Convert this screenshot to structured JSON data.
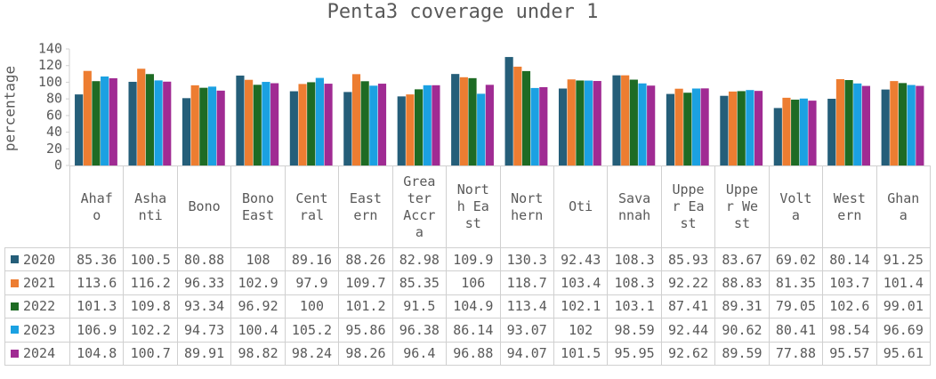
{
  "chart_data": {
    "type": "bar",
    "title": "Penta3 coverage under 1",
    "y_label": "percentage",
    "categories": [
      "Ahafo",
      "Ashanti",
      "Bono",
      "Bono East",
      "Central",
      "Eastern",
      "Greater Accra",
      "North East",
      "Northern",
      "Oti",
      "Savannah",
      "Upper East",
      "Upper West",
      "Volta",
      "Western",
      "Ghana"
    ],
    "series": [
      {
        "name": "2020",
        "color": "#255e79",
        "values": [
          85.36,
          100.5,
          80.88,
          108,
          89.16,
          88.26,
          82.98,
          109.9,
          130.3,
          92.43,
          108.3,
          85.93,
          83.67,
          69.02,
          80.14,
          91.25
        ]
      },
      {
        "name": "2021",
        "color": "#ed7d31",
        "values": [
          113.6,
          116.2,
          96.33,
          102.9,
          97.9,
          109.7,
          85.35,
          106,
          118.7,
          103.4,
          108.3,
          92.22,
          88.83,
          81.35,
          103.7,
          101.4
        ]
      },
      {
        "name": "2022",
        "color": "#1e6b24",
        "values": [
          101.3,
          109.8,
          93.34,
          96.92,
          100,
          101.2,
          91.5,
          104.9,
          113.4,
          102.1,
          103.1,
          87.41,
          89.31,
          79.05,
          102.6,
          99.01
        ]
      },
      {
        "name": "2023",
        "color": "#1ba1e2",
        "values": [
          106.9,
          102.2,
          94.73,
          100.4,
          105.2,
          95.86,
          96.38,
          86.14,
          93.07,
          102,
          98.59,
          92.44,
          90.62,
          80.41,
          98.54,
          96.69
        ]
      },
      {
        "name": "2024",
        "color": "#a02b93",
        "values": [
          104.8,
          100.7,
          89.91,
          98.82,
          98.24,
          98.26,
          96.4,
          96.88,
          94.07,
          101.5,
          95.95,
          92.62,
          89.59,
          77.88,
          95.57,
          95.61
        ]
      }
    ],
    "ylim": [
      0,
      140
    ],
    "yticks": [
      0,
      20,
      40,
      60,
      80,
      100,
      120,
      140
    ],
    "data_table": true
  }
}
